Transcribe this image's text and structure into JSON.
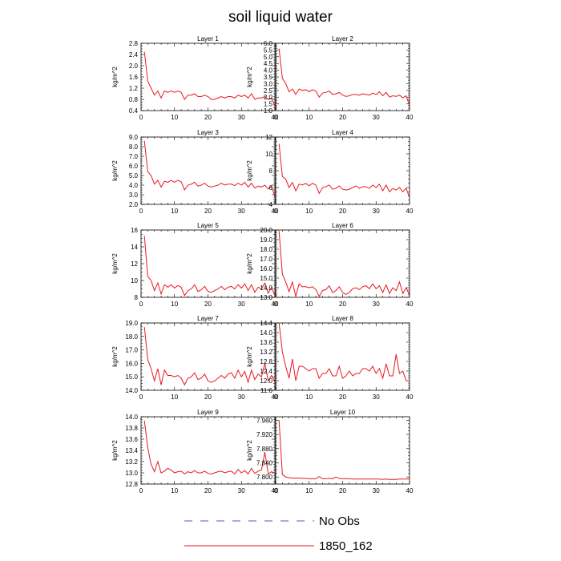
{
  "figure": {
    "title": "soil liquid water"
  },
  "legend": [
    {
      "label": "No Obs",
      "color": "#4b5fa8",
      "dash": "dashed"
    },
    {
      "label": "1850_162",
      "color": "#e8191f",
      "dash": "solid"
    }
  ],
  "chart_data": [
    {
      "type": "line",
      "title": "Layer 1",
      "ylabel": "kg/m^2",
      "xlim": [
        0,
        40
      ],
      "xticks": [
        0,
        10,
        20,
        30,
        40
      ],
      "ylim": [
        0.4,
        2.8
      ],
      "yticks": [
        0.4,
        0.8,
        1.2,
        1.6,
        2.0,
        2.4,
        2.8
      ],
      "ytick_labels": [
        "0.4",
        "0.8",
        "1.2",
        "1.6",
        "2.0",
        "2.4",
        "2.8"
      ],
      "series": [
        {
          "values": [
            2.5,
            1.45,
            1.2,
            0.95,
            1.1,
            0.85,
            1.1,
            1.05,
            1.1,
            1.05,
            1.1,
            1.05,
            0.8,
            0.95,
            0.95,
            1.0,
            0.9,
            0.9,
            0.95,
            0.9,
            0.8,
            0.8,
            0.85,
            0.9,
            0.85,
            0.9,
            0.9,
            0.85,
            0.95,
            0.9,
            0.95,
            0.85,
            1.0,
            0.8,
            0.85,
            0.85,
            0.9,
            0.8,
            0.85,
            0.55
          ]
        }
      ]
    },
    {
      "type": "line",
      "title": "Layer 2",
      "ylabel": "kg/m^2",
      "xlim": [
        0,
        40
      ],
      "xticks": [
        0,
        10,
        20,
        30,
        40
      ],
      "ylim": [
        1.0,
        6.0
      ],
      "yticks": [
        1.0,
        1.5,
        2.0,
        2.5,
        3.0,
        3.5,
        4.0,
        4.5,
        5.0,
        5.5,
        6.0
      ],
      "ytick_labels": [
        "1.0",
        "1.5",
        "2.0",
        "2.5",
        "3.0",
        "3.5",
        "4.0",
        "4.5",
        "5.0",
        "5.5",
        "6.0"
      ],
      "series": [
        {
          "values": [
            5.6,
            3.4,
            3.0,
            2.4,
            2.6,
            2.2,
            2.6,
            2.5,
            2.55,
            2.4,
            2.55,
            2.45,
            2.0,
            2.3,
            2.35,
            2.45,
            2.2,
            2.25,
            2.35,
            2.15,
            2.05,
            2.1,
            2.2,
            2.2,
            2.15,
            2.25,
            2.2,
            2.15,
            2.3,
            2.2,
            2.4,
            2.1,
            2.35,
            2.0,
            2.1,
            2.05,
            2.15,
            1.95,
            2.1,
            1.35
          ]
        }
      ]
    },
    {
      "type": "line",
      "title": "Layer 3",
      "ylabel": "kg/m^2",
      "xlim": [
        0,
        40
      ],
      "xticks": [
        0,
        10,
        20,
        30,
        40
      ],
      "ylim": [
        2.0,
        9.0
      ],
      "yticks": [
        2.0,
        3.0,
        4.0,
        5.0,
        6.0,
        7.0,
        8.0,
        9.0
      ],
      "ytick_labels": [
        "2.0",
        "3.0",
        "4.0",
        "5.0",
        "6.0",
        "7.0",
        "8.0",
        "9.0"
      ],
      "series": [
        {
          "values": [
            8.6,
            5.4,
            5.0,
            4.1,
            4.5,
            3.8,
            4.4,
            4.3,
            4.5,
            4.3,
            4.5,
            4.35,
            3.5,
            4.0,
            4.1,
            4.3,
            3.9,
            4.0,
            4.2,
            3.9,
            3.8,
            3.9,
            4.0,
            4.2,
            4.0,
            4.1,
            4.1,
            3.95,
            4.2,
            4.0,
            4.3,
            3.8,
            4.2,
            3.7,
            3.9,
            3.8,
            4.0,
            3.6,
            3.9,
            2.8
          ]
        }
      ]
    },
    {
      "type": "line",
      "title": "Layer 4",
      "ylabel": "kg/m^2",
      "xlim": [
        0,
        40
      ],
      "xticks": [
        0,
        10,
        20,
        30,
        40
      ],
      "ylim": [
        4,
        12
      ],
      "yticks": [
        4,
        6,
        8,
        10,
        12
      ],
      "ytick_labels": [
        "4",
        "6",
        "8",
        "10",
        "12"
      ],
      "series": [
        {
          "values": [
            11.2,
            7.3,
            7.0,
            6.0,
            6.6,
            5.6,
            6.4,
            6.3,
            6.5,
            6.2,
            6.5,
            6.3,
            5.3,
            6.0,
            6.1,
            6.3,
            5.8,
            5.9,
            6.2,
            5.8,
            5.7,
            5.8,
            6.0,
            6.2,
            5.9,
            6.1,
            6.1,
            5.9,
            6.3,
            6.0,
            6.4,
            5.6,
            6.3,
            5.5,
            5.9,
            5.7,
            6.0,
            5.5,
            5.9,
            4.8
          ]
        }
      ]
    },
    {
      "type": "line",
      "title": "Layer 5",
      "ylabel": "kg/m^2",
      "xlim": [
        0,
        40
      ],
      "xticks": [
        0,
        10,
        20,
        30,
        40
      ],
      "ylim": [
        8,
        16
      ],
      "yticks": [
        8,
        10,
        12,
        14,
        16
      ],
      "ytick_labels": [
        "8",
        "10",
        "12",
        "14",
        "16"
      ],
      "series": [
        {
          "values": [
            15.3,
            10.5,
            10.0,
            8.8,
            9.7,
            8.4,
            9.5,
            9.2,
            9.5,
            9.1,
            9.4,
            9.2,
            8.2,
            8.8,
            9.0,
            9.5,
            8.7,
            8.9,
            9.3,
            8.7,
            8.6,
            8.8,
            9.0,
            9.3,
            8.9,
            9.2,
            9.3,
            9.0,
            9.5,
            9.1,
            9.6,
            8.8,
            9.5,
            8.6,
            9.2,
            9.0,
            9.7,
            8.5,
            9.2,
            8.2
          ]
        }
      ]
    },
    {
      "type": "line",
      "title": "Layer 6",
      "ylabel": "kg/m^2",
      "xlim": [
        0,
        40
      ],
      "xticks": [
        0,
        10,
        20,
        30,
        40
      ],
      "ylim": [
        13.0,
        20.0
      ],
      "yticks": [
        13.0,
        14.0,
        15.0,
        16.0,
        17.0,
        18.0,
        19.0,
        20.0
      ],
      "ytick_labels": [
        "13.0",
        "14.0",
        "15.0",
        "16.0",
        "17.0",
        "18.0",
        "19.0",
        "20.0"
      ],
      "series": [
        {
          "values": [
            19.9,
            15.4,
            14.6,
            13.6,
            14.6,
            13.1,
            14.4,
            14.1,
            14.1,
            14.0,
            14.1,
            13.8,
            13.1,
            13.7,
            13.8,
            14.2,
            13.5,
            13.7,
            14.1,
            13.5,
            13.3,
            13.5,
            13.9,
            14.0,
            13.8,
            14.1,
            14.2,
            13.9,
            14.4,
            13.9,
            14.2,
            13.5,
            14.3,
            13.4,
            14.0,
            13.7,
            14.6,
            13.4,
            14.0,
            13.2
          ]
        }
      ]
    },
    {
      "type": "line",
      "title": "Layer 7",
      "ylabel": "kg/m^2",
      "xlim": [
        0,
        40
      ],
      "xticks": [
        0,
        10,
        20,
        30,
        40
      ],
      "ylim": [
        14.0,
        19.0
      ],
      "yticks": [
        14.0,
        15.0,
        16.0,
        17.0,
        18.0,
        19.0
      ],
      "ytick_labels": [
        "14.0",
        "15.0",
        "16.0",
        "17.0",
        "18.0",
        "19.0"
      ],
      "series": [
        {
          "values": [
            18.7,
            16.3,
            15.6,
            14.7,
            15.6,
            14.4,
            15.5,
            15.1,
            15.1,
            15.0,
            15.1,
            14.9,
            14.4,
            14.9,
            15.0,
            15.3,
            14.8,
            14.9,
            15.2,
            14.7,
            14.6,
            14.7,
            14.9,
            15.1,
            14.9,
            15.2,
            15.3,
            14.9,
            15.5,
            15.0,
            15.4,
            14.6,
            15.5,
            14.8,
            15.2,
            15.0,
            16.0,
            14.7,
            15.1,
            14.6
          ]
        }
      ]
    },
    {
      "type": "line",
      "title": "Layer 8",
      "ylabel": "kg/m^2",
      "xlim": [
        0,
        40
      ],
      "xticks": [
        0,
        10,
        20,
        30,
        40
      ],
      "ylim": [
        11.6,
        14.4
      ],
      "yticks": [
        11.6,
        12.0,
        12.4,
        12.8,
        13.2,
        13.6,
        14.0,
        14.4
      ],
      "ytick_labels": [
        "11.6",
        "12.0",
        "12.4",
        "12.8",
        "13.2",
        "13.6",
        "14.0",
        "14.4"
      ],
      "series": [
        {
          "values": [
            14.4,
            13.2,
            12.6,
            12.1,
            12.9,
            12.0,
            12.6,
            12.6,
            12.5,
            12.4,
            12.5,
            12.5,
            12.1,
            12.3,
            12.3,
            12.5,
            12.2,
            12.2,
            12.6,
            12.1,
            12.2,
            12.4,
            12.2,
            12.3,
            12.3,
            12.5,
            12.5,
            12.4,
            12.6,
            12.3,
            12.5,
            12.1,
            12.7,
            12.2,
            12.2,
            13.1,
            12.3,
            12.4,
            12.0,
            12.0
          ]
        }
      ]
    },
    {
      "type": "line",
      "title": "Layer 9",
      "ylabel": "kg/m^2",
      "xlim": [
        0,
        40
      ],
      "xticks": [
        0,
        10,
        20,
        30,
        40
      ],
      "ylim": [
        12.8,
        14.0
      ],
      "yticks": [
        12.8,
        13.0,
        13.2,
        13.4,
        13.6,
        13.8,
        14.0
      ],
      "ytick_labels": [
        "12.8",
        "13.0",
        "13.2",
        "13.4",
        "13.6",
        "13.8",
        "14.0"
      ],
      "series": [
        {
          "values": [
            13.93,
            13.45,
            13.15,
            13.02,
            13.2,
            13.0,
            13.03,
            13.08,
            13.05,
            13.0,
            13.02,
            13.03,
            12.98,
            13.02,
            13.0,
            13.04,
            13.0,
            13.0,
            13.03,
            12.99,
            12.98,
            13.0,
            13.02,
            13.03,
            13.0,
            13.02,
            13.03,
            12.98,
            13.06,
            13.0,
            13.04,
            12.98,
            13.08,
            12.99,
            13.03,
            13.05,
            13.37,
            12.98,
            13.02,
            12.99
          ]
        }
      ]
    },
    {
      "type": "line",
      "title": "Layer 10",
      "ylabel": "kg/m^2",
      "xlim": [
        0,
        40
      ],
      "xticks": [
        0,
        10,
        20,
        30,
        40
      ],
      "ylim": [
        7.78,
        7.97
      ],
      "yticks": [
        7.8,
        7.84,
        7.88,
        7.92,
        7.96
      ],
      "ytick_labels": [
        "7.800",
        "7.840",
        "7.880",
        "7.920",
        "7.960"
      ],
      "series": [
        {
          "values": [
            7.96,
            7.807,
            7.8,
            7.798,
            7.797,
            7.797,
            7.797,
            7.796,
            7.796,
            7.795,
            7.795,
            7.795,
            7.801,
            7.795,
            7.795,
            7.796,
            7.795,
            7.8,
            7.796,
            7.795,
            7.795,
            7.795,
            7.794,
            7.794,
            7.794,
            7.794,
            7.794,
            7.794,
            7.794,
            7.794,
            7.794,
            7.793,
            7.794,
            7.793,
            7.793,
            7.793,
            7.794,
            7.794,
            7.794,
            7.794
          ]
        }
      ]
    }
  ]
}
